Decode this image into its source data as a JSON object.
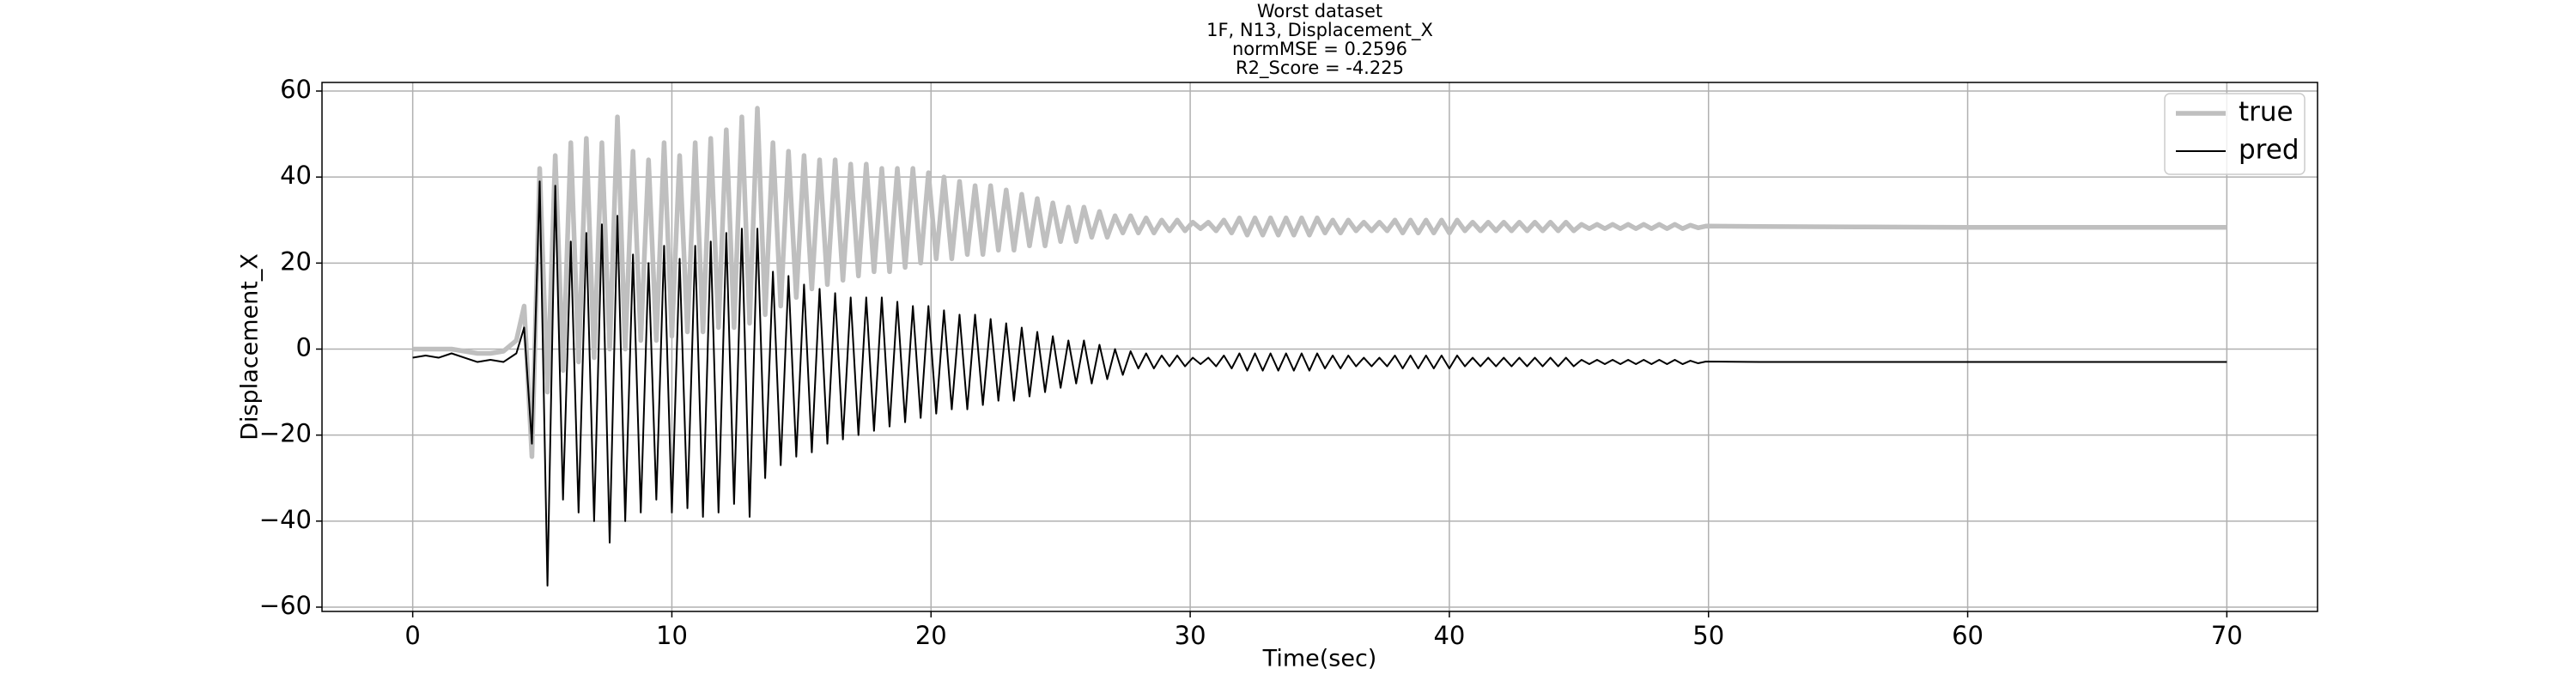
{
  "chart_data": {
    "type": "line",
    "title": [
      "Worst dataset",
      "1F, N13, Displacement_X",
      "normMSE = 0.2596",
      "R2_Score = -4.225"
    ],
    "xlabel": "Time(sec)",
    "ylabel": "Displacement_X",
    "x": [
      0,
      0.5,
      1,
      1.5,
      2,
      2.5,
      3,
      3.5,
      4,
      4.3,
      4.6,
      4.9,
      5.2,
      5.5,
      5.8,
      6.1,
      6.4,
      6.7,
      7,
      7.3,
      7.6,
      7.9,
      8.2,
      8.5,
      8.8,
      9.1,
      9.4,
      9.7,
      10,
      10.3,
      10.6,
      10.9,
      11.2,
      11.5,
      11.8,
      12.1,
      12.4,
      12.7,
      13,
      13.3,
      13.6,
      13.9,
      14.2,
      14.5,
      14.8,
      15.1,
      15.4,
      15.7,
      16,
      16.3,
      16.6,
      16.9,
      17.2,
      17.5,
      17.8,
      18.1,
      18.4,
      18.7,
      19,
      19.3,
      19.6,
      19.9,
      20.2,
      20.5,
      20.8,
      21.1,
      21.4,
      21.7,
      22,
      22.3,
      22.6,
      22.9,
      23.2,
      23.5,
      23.8,
      24.1,
      24.4,
      24.7,
      25,
      25.3,
      25.6,
      25.9,
      26.2,
      26.5,
      26.8,
      27.1,
      27.4,
      27.7,
      28,
      28.3,
      28.6,
      28.9,
      29.2,
      29.5,
      29.8,
      30.1,
      30.4,
      30.7,
      31,
      31.3,
      31.6,
      31.9,
      32.2,
      32.5,
      32.8,
      33.1,
      33.4,
      33.7,
      34,
      34.3,
      34.6,
      34.9,
      35.2,
      35.5,
      35.8,
      36.1,
      36.4,
      36.7,
      37,
      37.3,
      37.6,
      37.9,
      38.2,
      38.5,
      38.8,
      39.1,
      39.4,
      39.7,
      40,
      40.3,
      40.6,
      40.9,
      41.2,
      41.5,
      41.8,
      42.1,
      42.4,
      42.7,
      43,
      43.3,
      43.6,
      43.9,
      44.2,
      44.5,
      44.8,
      45.1,
      45.4,
      45.7,
      46,
      46.3,
      46.6,
      46.9,
      47.2,
      47.5,
      47.8,
      48.1,
      48.4,
      48.7,
      49,
      49.3,
      49.6,
      49.9,
      52,
      56,
      60,
      65,
      70
    ],
    "series": [
      {
        "name": "true",
        "color": "#bfbfbf",
        "values": [
          0,
          0,
          0,
          0,
          -0.5,
          -1,
          -1,
          -0.5,
          2,
          10,
          -25,
          42,
          -10,
          45,
          -5,
          48,
          -3,
          49,
          -2,
          48,
          0,
          54,
          0,
          46,
          2,
          44,
          2,
          48,
          3,
          45,
          4,
          48,
          4,
          49,
          5,
          51,
          5,
          54,
          6,
          56,
          8,
          48,
          10,
          46,
          12,
          45,
          14,
          44,
          15,
          44,
          16,
          43,
          17,
          43,
          18,
          42,
          18,
          42,
          19,
          42,
          20,
          41,
          21,
          40,
          21,
          39,
          22,
          38,
          22,
          38,
          23,
          37,
          23,
          36,
          24,
          35,
          24,
          34,
          25,
          33,
          25,
          33,
          26,
          32,
          26,
          31,
          27,
          31,
          27,
          30.5,
          27,
          30,
          27.5,
          30,
          27.5,
          29.5,
          28,
          29.5,
          27.5,
          30,
          27,
          30.5,
          26.5,
          30.5,
          26.5,
          30.5,
          26.5,
          30.5,
          26.5,
          30.5,
          26.5,
          30.5,
          27,
          30,
          27,
          30,
          27.5,
          29.5,
          27.5,
          29.5,
          27.5,
          30,
          27,
          30,
          27,
          30,
          27,
          30,
          27,
          30,
          27.5,
          29.5,
          27.5,
          29.5,
          27.5,
          29.5,
          27.5,
          29.5,
          27.5,
          29.5,
          27.5,
          29.5,
          27.5,
          29.5,
          27.5,
          29,
          28,
          29,
          28,
          29,
          28,
          29,
          28,
          29,
          28,
          29,
          28,
          29,
          28,
          28.8,
          28.2,
          28.6,
          28.5,
          28.4,
          28.3,
          28.3,
          28.3
        ]
      },
      {
        "name": "pred",
        "color": "#000000",
        "values": [
          -2,
          -1.5,
          -2,
          -1,
          -2,
          -3,
          -2.5,
          -3,
          -1,
          5,
          -22,
          39,
          -55,
          38,
          -35,
          25,
          -38,
          27,
          -40,
          29,
          -45,
          31,
          -40,
          22,
          -38,
          20,
          -35,
          24,
          -38,
          21,
          -37,
          24,
          -39,
          25,
          -38,
          27,
          -36,
          28,
          -39,
          28,
          -30,
          18,
          -27,
          17,
          -25,
          15,
          -24,
          14,
          -22,
          13,
          -21,
          12,
          -20,
          12,
          -19,
          12,
          -18,
          11,
          -17,
          10,
          -16,
          10,
          -15,
          9,
          -14,
          8,
          -14,
          8,
          -13,
          7,
          -12,
          6,
          -12,
          5,
          -11,
          4,
          -10,
          3,
          -9,
          2,
          -8,
          2,
          -8,
          1,
          -7,
          0,
          -6,
          -0.5,
          -4.5,
          -1,
          -4.5,
          -1.5,
          -4,
          -1.5,
          -4,
          -2,
          -3.5,
          -2,
          -4,
          -1.5,
          -4.5,
          -1,
          -5,
          -1,
          -5,
          -1,
          -5,
          -1,
          -5,
          -1,
          -5,
          -1,
          -4.5,
          -1.5,
          -4.5,
          -1.5,
          -4,
          -2,
          -4,
          -2,
          -4,
          -1.5,
          -4.5,
          -1.5,
          -4.5,
          -1.5,
          -4.5,
          -1.5,
          -4.5,
          -1.5,
          -4,
          -2,
          -4,
          -2,
          -4,
          -2,
          -4,
          -2,
          -4,
          -2,
          -4,
          -2,
          -4,
          -2,
          -4,
          -2.5,
          -3.5,
          -2.5,
          -3.5,
          -2.5,
          -3.5,
          -2.5,
          -3.5,
          -2.5,
          -3.5,
          -2.5,
          -3.5,
          -2.5,
          -3.5,
          -2.7,
          -3.3,
          -2.9,
          -3,
          -3,
          -3,
          -3,
          -3
        ]
      }
    ],
    "xlim": [
      -3.5,
      73.5
    ],
    "ylim": [
      -61,
      62
    ],
    "xticks": [
      0,
      10,
      20,
      30,
      40,
      50,
      60,
      70
    ],
    "yticks": [
      {
        "value": -60,
        "label": "−60"
      },
      {
        "value": -40,
        "label": "−40"
      },
      {
        "value": -20,
        "label": "−20"
      },
      0,
      20,
      40,
      60
    ],
    "grid": true,
    "legend": "upper right"
  }
}
